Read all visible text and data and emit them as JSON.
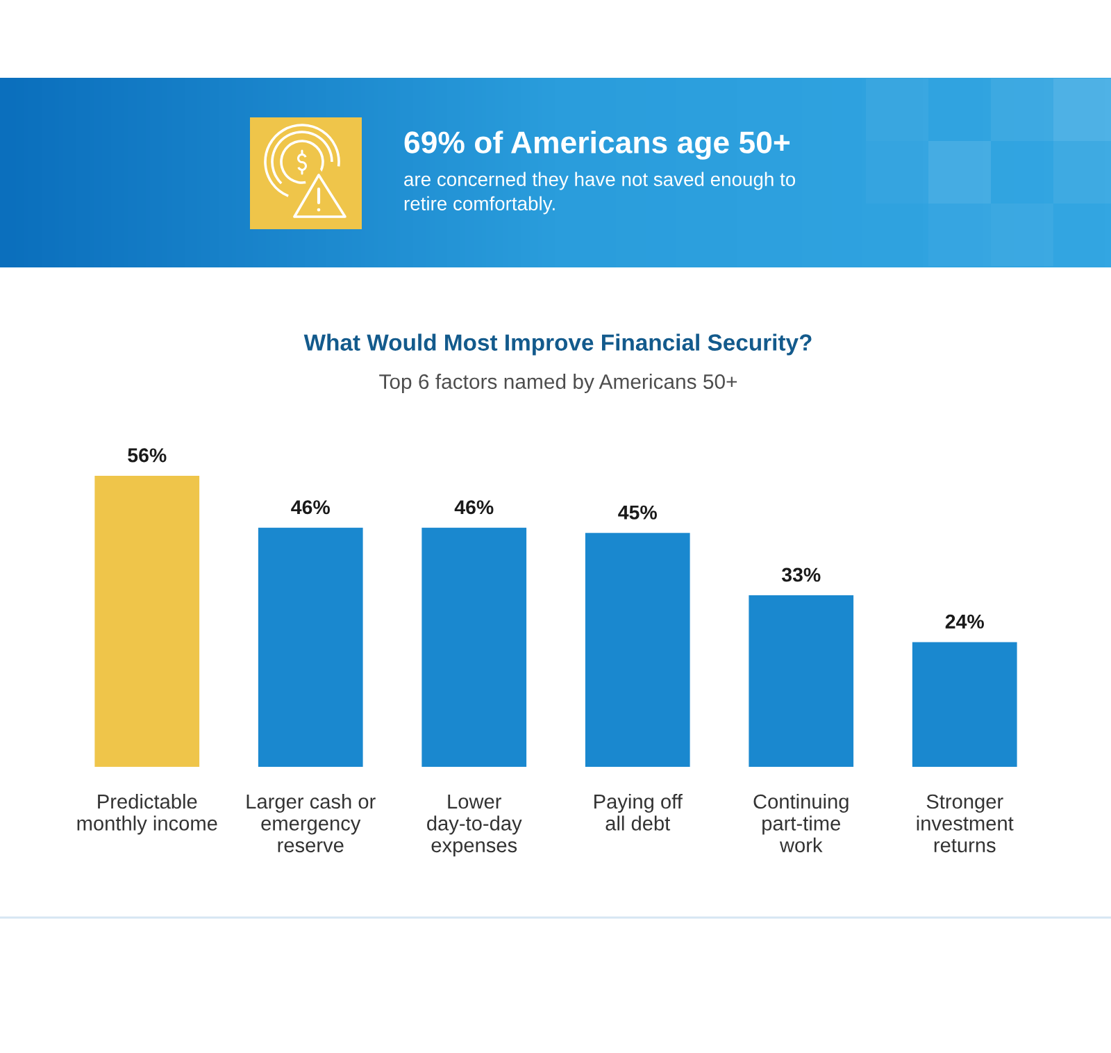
{
  "chart_data": {
    "type": "bar",
    "title": "What Would Most Improve Financial Security?",
    "subtitle": "Top 6 factors named by Americans 50+",
    "annotations": [
      "69% of Americans age 50+",
      "are concerned they have not saved enough to\nretire comfortably."
    ],
    "categories": [
      "Predictable\nmonthly income",
      "Larger cash or\nemergency\nreserve",
      "Lower\nday-to-day\nexpenses",
      "Paying off\nall debt",
      "Continuing\npart-time\nwork",
      "Stronger\ninvestment\nreturns"
    ],
    "values": [
      56,
      46,
      46,
      45,
      33,
      24
    ],
    "colors": [
      "#efc54a",
      "#1a88cf",
      "#1a88cf",
      "#1a88cf",
      "#1a88cf",
      "#1a88cf"
    ],
    "value_labels": [
      "56%",
      "46%",
      "46%",
      "45%",
      "33%",
      "24%"
    ],
    "tick_labels": "x"
  }
}
